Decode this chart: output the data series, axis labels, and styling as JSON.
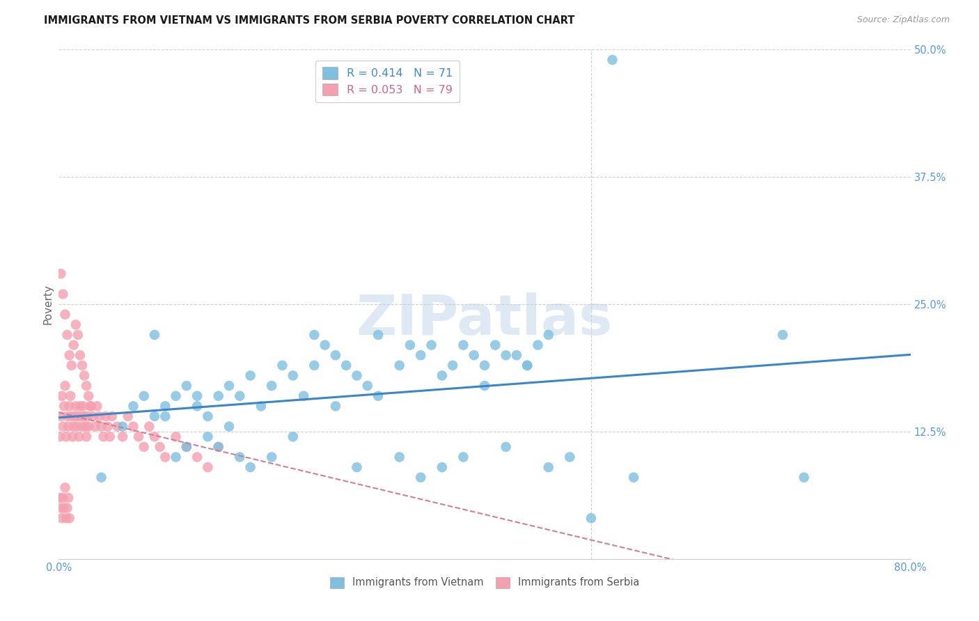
{
  "title": "IMMIGRANTS FROM VIETNAM VS IMMIGRANTS FROM SERBIA POVERTY CORRELATION CHART",
  "source": "Source: ZipAtlas.com",
  "ylabel": "Poverty",
  "xlim": [
    0.0,
    0.8
  ],
  "ylim": [
    0.0,
    0.5
  ],
  "background_color": "#ffffff",
  "grid_color": "#d0d0d0",
  "watermark_text": "ZIPatlas",
  "vietnam_color": "#7fbfdf",
  "serbia_color": "#f4a0b0",
  "vietnam_R": 0.414,
  "vietnam_N": 71,
  "serbia_R": 0.053,
  "serbia_N": 79,
  "vietnam_line_color": "#3a86c8",
  "serbia_line_color": "#d08090",
  "tick_label_color": "#5599dd",
  "legend_text_color_viet": "#4488cc",
  "legend_text_color_serb": "#cc6688",
  "vietnam_x": [
    0.04,
    0.06,
    0.07,
    0.08,
    0.09,
    0.1,
    0.11,
    0.12,
    0.13,
    0.14,
    0.15,
    0.16,
    0.17,
    0.18,
    0.19,
    0.2,
    0.21,
    0.22,
    0.23,
    0.24,
    0.25,
    0.26,
    0.27,
    0.28,
    0.29,
    0.3,
    0.32,
    0.33,
    0.34,
    0.35,
    0.36,
    0.37,
    0.38,
    0.39,
    0.4,
    0.41,
    0.42,
    0.43,
    0.44,
    0.45,
    0.09,
    0.1,
    0.11,
    0.12,
    0.13,
    0.14,
    0.15,
    0.16,
    0.17,
    0.18,
    0.2,
    0.22,
    0.24,
    0.26,
    0.28,
    0.3,
    0.32,
    0.34,
    0.36,
    0.38,
    0.4,
    0.42,
    0.44,
    0.46,
    0.48,
    0.5,
    0.52,
    0.54,
    0.68,
    0.7,
    0.46
  ],
  "vietnam_y": [
    0.08,
    0.13,
    0.15,
    0.16,
    0.14,
    0.15,
    0.16,
    0.17,
    0.15,
    0.14,
    0.16,
    0.17,
    0.16,
    0.18,
    0.15,
    0.17,
    0.19,
    0.18,
    0.16,
    0.22,
    0.21,
    0.2,
    0.19,
    0.18,
    0.17,
    0.22,
    0.19,
    0.21,
    0.2,
    0.21,
    0.18,
    0.19,
    0.21,
    0.2,
    0.19,
    0.21,
    0.2,
    0.2,
    0.19,
    0.21,
    0.22,
    0.14,
    0.1,
    0.11,
    0.16,
    0.12,
    0.11,
    0.13,
    0.1,
    0.09,
    0.1,
    0.12,
    0.19,
    0.15,
    0.09,
    0.16,
    0.1,
    0.08,
    0.09,
    0.1,
    0.17,
    0.11,
    0.19,
    0.09,
    0.1,
    0.04,
    0.49,
    0.08,
    0.22,
    0.08,
    0.22
  ],
  "serbia_x": [
    0.001,
    0.002,
    0.003,
    0.004,
    0.005,
    0.006,
    0.007,
    0.008,
    0.009,
    0.01,
    0.011,
    0.012,
    0.013,
    0.014,
    0.015,
    0.016,
    0.017,
    0.018,
    0.019,
    0.02,
    0.021,
    0.022,
    0.023,
    0.024,
    0.025,
    0.026,
    0.027,
    0.028,
    0.03,
    0.032,
    0.034,
    0.036,
    0.038,
    0.04,
    0.042,
    0.044,
    0.046,
    0.048,
    0.05,
    0.055,
    0.06,
    0.065,
    0.07,
    0.075,
    0.08,
    0.085,
    0.09,
    0.095,
    0.1,
    0.11,
    0.12,
    0.13,
    0.14,
    0.15,
    0.002,
    0.004,
    0.006,
    0.008,
    0.01,
    0.012,
    0.014,
    0.016,
    0.018,
    0.02,
    0.022,
    0.024,
    0.026,
    0.028,
    0.03,
    0.001,
    0.002,
    0.003,
    0.004,
    0.005,
    0.006,
    0.007,
    0.008,
    0.009,
    0.01
  ],
  "serbia_y": [
    0.12,
    0.14,
    0.16,
    0.13,
    0.15,
    0.17,
    0.12,
    0.14,
    0.13,
    0.15,
    0.16,
    0.14,
    0.12,
    0.13,
    0.14,
    0.15,
    0.13,
    0.14,
    0.12,
    0.15,
    0.14,
    0.13,
    0.15,
    0.14,
    0.13,
    0.12,
    0.14,
    0.13,
    0.15,
    0.14,
    0.13,
    0.15,
    0.14,
    0.13,
    0.12,
    0.14,
    0.13,
    0.12,
    0.14,
    0.13,
    0.12,
    0.14,
    0.13,
    0.12,
    0.11,
    0.13,
    0.12,
    0.11,
    0.1,
    0.12,
    0.11,
    0.1,
    0.09,
    0.11,
    0.28,
    0.26,
    0.24,
    0.22,
    0.2,
    0.19,
    0.21,
    0.23,
    0.22,
    0.2,
    0.19,
    0.18,
    0.17,
    0.16,
    0.15,
    0.06,
    0.05,
    0.04,
    0.06,
    0.05,
    0.07,
    0.04,
    0.05,
    0.06,
    0.04
  ]
}
